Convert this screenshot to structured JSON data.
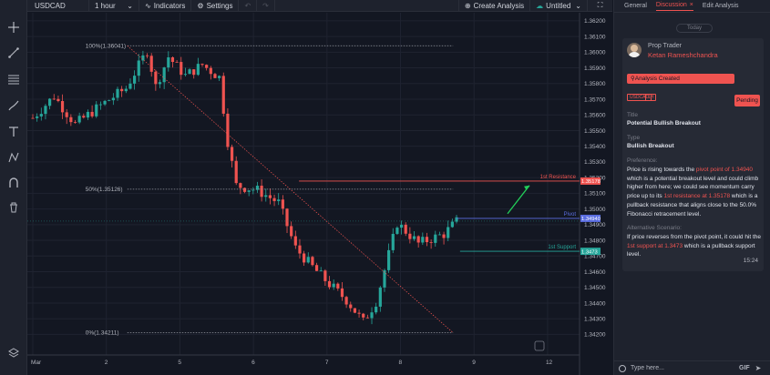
{
  "toolbar": {
    "symbol": "USDCAD",
    "interval": "1 hour",
    "indicators_label": "Indicators",
    "settings_label": "Settings",
    "create_analysis_label": "Create Analysis",
    "layout_name": "Untitled"
  },
  "left_tools": [
    "crosshair-icon",
    "trend-line-icon",
    "fib-retracement-icon",
    "brush-icon",
    "text-icon",
    "pattern-icon",
    "magnet-icon",
    "trash-icon",
    "layers-icon"
  ],
  "panel": {
    "tabs": [
      {
        "label": "General",
        "active": false
      },
      {
        "label": "Discussion",
        "active": true
      },
      {
        "label": "Edit Analysis",
        "active": false
      }
    ],
    "today_label": "Today",
    "author_role": "Prop Trader",
    "author_name": "Ketan Rameshchandra",
    "created_label": "Analysis Created",
    "chips": [
      "USDCAD",
      "1H"
    ],
    "status": "Pending",
    "title_label": "Title",
    "title_value": "Potential Bullish Breakout",
    "type_label": "Type",
    "type_value": "Bullish Breakout",
    "preference_label": "Preference:",
    "preference_text": {
      "p1": "Price is rising towards the ",
      "h1": "pivot point of 1.34940",
      "p2": " which is a potential breakout level and could climb higher from here; we could see momentum carry price up to its ",
      "h2": "1st resistance at 1.35178",
      "p3": " which is a pullback resistance that aligns close to the 50.0% Fibonacci retracement level."
    },
    "alt_label": "Alternative Scenario:",
    "alt_text": {
      "p1": "If price reverses from the pivot point, it could hit the ",
      "h1": "1st support at 1.3473",
      "p2": " which is a pullback support level."
    },
    "timestamp": "15:24",
    "input_placeholder": "Type here...",
    "gif_label": "GIF"
  },
  "chart_data": {
    "type": "candlestick",
    "symbol": "USDCAD",
    "interval": "1 hour",
    "x_ticks": [
      {
        "label": "Mar",
        "x": 0
      },
      {
        "label": "2",
        "x": 21
      },
      {
        "label": "5",
        "x": 42
      },
      {
        "label": "6",
        "x": 63
      },
      {
        "label": "7",
        "x": 84
      },
      {
        "label": "8",
        "x": 105
      },
      {
        "label": "9",
        "x": 126
      },
      {
        "label": "12",
        "x": 147
      }
    ],
    "y_ticks": [
      1.362,
      1.361,
      1.36,
      1.359,
      1.358,
      1.357,
      1.356,
      1.355,
      1.354,
      1.353,
      1.352,
      1.351,
      1.35,
      1.349,
      1.348,
      1.347,
      1.346,
      1.345,
      1.344,
      1.343,
      1.342
    ],
    "ylim": [
      1.34185,
      1.36205
    ],
    "xlim": [
      0,
      153
    ],
    "current_price": 1.3494,
    "fib_levels": [
      {
        "label": "100%(1.36041)",
        "value": 1.36041
      },
      {
        "label": "50%(1.35126)",
        "value": 1.35126
      },
      {
        "label": "0%(1.34211)",
        "value": 1.34211
      }
    ],
    "levels": [
      {
        "name": "1st Resistance",
        "value": 1.35178,
        "price_label": "1.35178",
        "color": "#ef5350"
      },
      {
        "name": "Pivot",
        "value": 1.3494,
        "price_label": "1.34940",
        "color": "#5b6ee1"
      },
      {
        "name": "1st Support",
        "value": 1.3473,
        "price_label": "1.3473",
        "color": "#26a69a"
      }
    ],
    "anchors": [
      {
        "x": 27,
        "y": 1.3602,
        "x_end": 120
      },
      {
        "x": 121,
        "y": 1.3495
      }
    ],
    "colors": {
      "up": "#26a69a",
      "down": "#ef5350",
      "bg": "#131722",
      "grid": "#1f2330"
    }
  }
}
